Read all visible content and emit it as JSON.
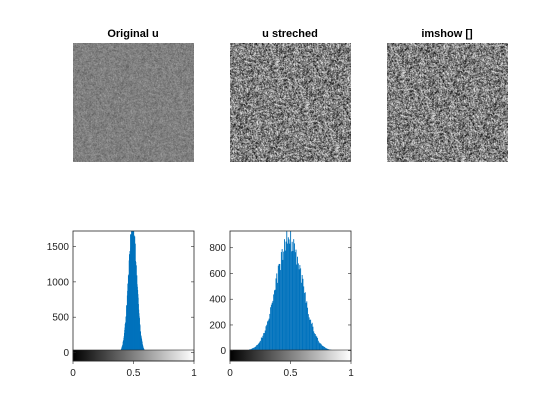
{
  "figure": {
    "images": [
      {
        "title": "Original u",
        "mean": 0.5,
        "std": 0.055
      },
      {
        "title": "u streched",
        "mean": 0.5,
        "std": 0.22
      },
      {
        "title": "imshow []",
        "mean": 0.5,
        "std": 0.22
      }
    ]
  },
  "chart_data": [
    {
      "type": "bar",
      "title": "",
      "xlabel": "",
      "ylabel": "",
      "xlim": [
        0,
        1
      ],
      "ylim": [
        -120,
        1720
      ],
      "xticks": [
        "0",
        "0.5",
        "1"
      ],
      "yticks": [
        "0",
        "500",
        "1000",
        "1500"
      ],
      "colorbar": "gray",
      "color": "#0072BD",
      "distribution": {
        "mean": 0.49,
        "std": 0.035,
        "peak": 1720,
        "range": [
          0.38,
          0.62
        ]
      }
    },
    {
      "type": "bar",
      "title": "",
      "xlabel": "",
      "ylabel": "",
      "xlim": [
        0,
        1
      ],
      "ylim": [
        -80,
        930
      ],
      "xticks": [
        "0",
        "0.5",
        "1"
      ],
      "yticks": [
        "0",
        "200",
        "400",
        "600",
        "800"
      ],
      "colorbar": "gray",
      "color": "#0072BD",
      "distribution": {
        "mean": 0.49,
        "std": 0.11,
        "peak": 860,
        "range": [
          0.16,
          0.86
        ]
      }
    }
  ]
}
